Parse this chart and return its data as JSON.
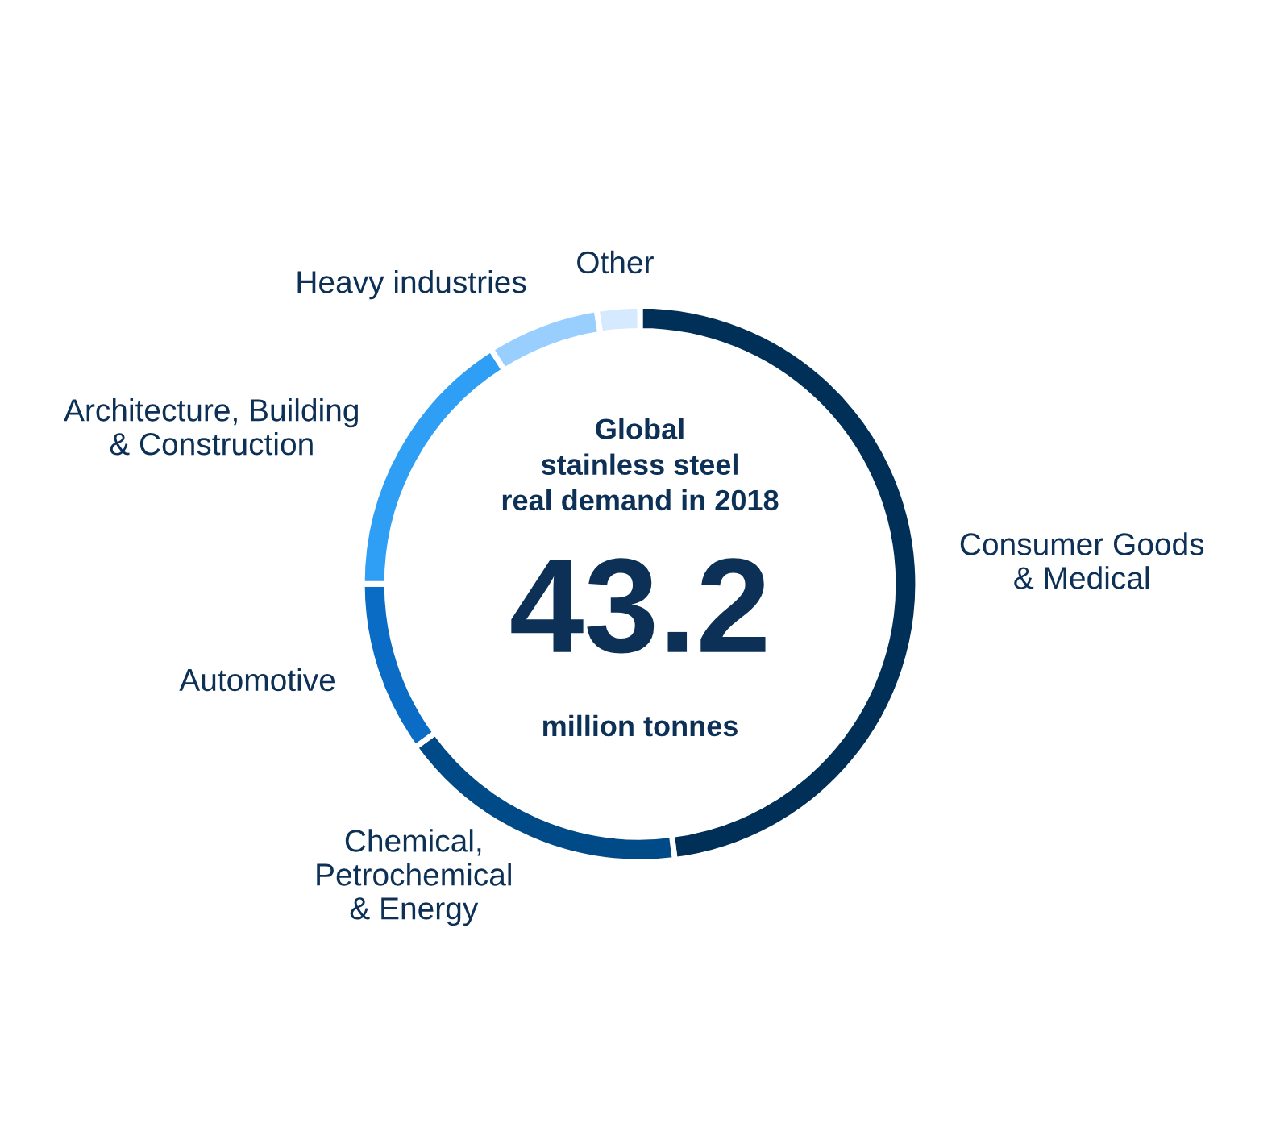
{
  "chart_data": {
    "type": "donut",
    "title": "Global\nstainless steel\nreal demand in 2018",
    "categories": [
      "Consumer Goods\n& Medical",
      "Chemical,\nPetrochemical\n& Energy",
      "Automotive",
      "Architecture, Building\n& Construction",
      "Heavy industries",
      "Other"
    ],
    "values": [
      48,
      17,
      10,
      16,
      6.5,
      2.5
    ],
    "colors": [
      "#003057",
      "#004a87",
      "#0a6cc4",
      "#2e9ff5",
      "#99cfff",
      "#d6eaff"
    ],
    "annotations": [
      "43.2",
      "million tonnes"
    ],
    "legend": false
  }
}
